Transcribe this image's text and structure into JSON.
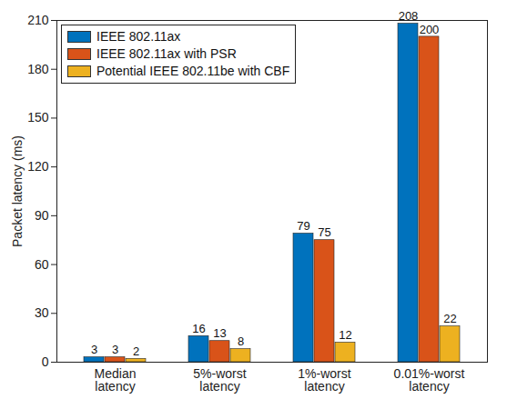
{
  "chart_data": {
    "type": "bar",
    "categories": [
      "Median latency",
      "5%-worst latency",
      "1%-worst latency",
      "0.01%-worst latency"
    ],
    "series": [
      {
        "name": "IEEE 802.11ax",
        "color": "#0072BD",
        "values": [
          3,
          16,
          79,
          208
        ]
      },
      {
        "name": "IEEE 802.11ax with PSR",
        "color": "#D95319",
        "values": [
          3,
          13,
          75,
          200
        ]
      },
      {
        "name": "Potential IEEE 802.11be with CBF",
        "color": "#EDB120",
        "values": [
          2,
          8,
          12,
          22
        ]
      }
    ],
    "ylabel": "Packet latency (ms)",
    "ylim": [
      0,
      210
    ],
    "yticks": [
      0,
      30,
      60,
      90,
      120,
      150,
      180,
      210
    ],
    "data_labels": true,
    "legend": "upper left",
    "grid": false
  }
}
